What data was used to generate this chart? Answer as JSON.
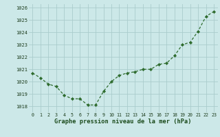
{
  "hours": [
    0,
    1,
    2,
    3,
    4,
    5,
    6,
    7,
    8,
    9,
    10,
    11,
    12,
    13,
    14,
    15,
    16,
    17,
    18,
    19,
    20,
    21,
    22,
    23
  ],
  "pressure": [
    1020.7,
    1020.3,
    1019.8,
    1019.6,
    1018.9,
    1018.6,
    1018.6,
    1018.1,
    1018.1,
    1019.2,
    1020.0,
    1020.5,
    1020.7,
    1020.8,
    1021.0,
    1021.0,
    1021.4,
    1021.5,
    1022.1,
    1023.0,
    1023.2,
    1024.1,
    1025.3,
    1025.7
  ],
  "ylim": [
    1017.5,
    1026.3
  ],
  "yticks": [
    1018,
    1019,
    1020,
    1021,
    1022,
    1023,
    1024,
    1025,
    1026
  ],
  "line_color": "#2d6b2d",
  "marker_color": "#2d6b2d",
  "bg_color": "#cce8e8",
  "grid_color": "#aacccc",
  "xlabel": "Graphe pression niveau de la mer (hPa)",
  "xlabel_color": "#1a4a1a",
  "tick_color": "#1a3a1a"
}
